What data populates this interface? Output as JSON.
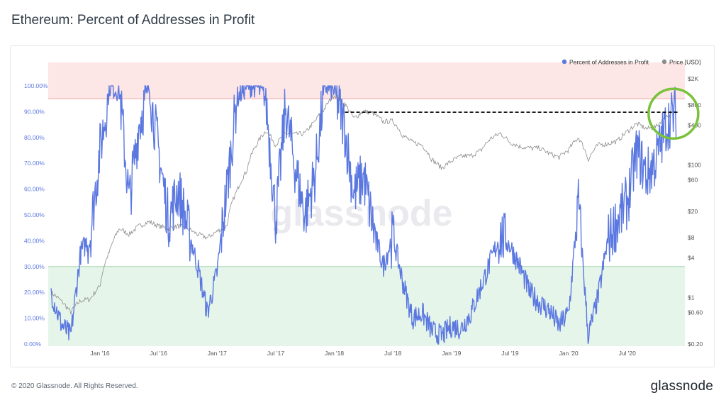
{
  "page": {
    "title": "Ethereum: Percent of Addresses in Profit",
    "footer": "© 2020 Glassnode. All Rights Reserved.",
    "logo": "glassnode",
    "watermark": "glassnode"
  },
  "colors": {
    "series_primary": "#5b78e0",
    "series_price": "#8c8c8c",
    "zone_high": "#fde6e6",
    "zone_high_line": "#f2a6a0",
    "zone_low": "#e6f5ea",
    "zone_low_line": "#a6d6ae",
    "annotation_circle": "#79c23a",
    "annotation_line": "#000000"
  },
  "chart_data": {
    "type": "line",
    "title": "Ethereum: Percent of Addresses in Profit",
    "legend": {
      "placement": "top-right",
      "items": [
        {
          "name": "Percent of Addresses in Profit",
          "color": "#5b78e0"
        },
        {
          "name": "Price [USD]",
          "color": "#8c8c8c"
        }
      ]
    },
    "x_axis": {
      "ticks": [
        "Jan '16",
        "Jul '16",
        "Jan '17",
        "Jul '17",
        "Jan '18",
        "Jul '18",
        "Jan '19",
        "Jul '19",
        "Jan '20",
        "Jul '20"
      ],
      "range": [
        "2015-08",
        "2020-12"
      ]
    },
    "y_left": {
      "ticks": [
        "0.00%",
        "10.00%",
        "20.00%",
        "30.00%",
        "40.00%",
        "50.00%",
        "60.00%",
        "70.00%",
        "80.00%",
        "90.00%",
        "100.00%"
      ],
      "range": [
        0,
        100
      ]
    },
    "y_right": {
      "scale": "log",
      "ticks": [
        "$0.20",
        "$0.60",
        "$1",
        "$4",
        "$8",
        "$20",
        "$60",
        "$100",
        "$400",
        "$800",
        "$2K"
      ],
      "tick_values": [
        0.2,
        0.6,
        1,
        4,
        8,
        20,
        60,
        100,
        400,
        800,
        2000
      ]
    },
    "zones": [
      {
        "name": "high",
        "from": 95,
        "to": 110
      },
      {
        "name": "low",
        "from": 0,
        "to": 30
      }
    ],
    "series": [
      {
        "name": "Percent of Addresses in Profit",
        "axis": "left",
        "points": [
          [
            "2015-08",
            20
          ],
          [
            "2015-09",
            8
          ],
          [
            "2015-10",
            3
          ],
          [
            "2015-11",
            35
          ],
          [
            "2015-12",
            42
          ],
          [
            "2016-01",
            75
          ],
          [
            "2016-02",
            100
          ],
          [
            "2016-03",
            98
          ],
          [
            "2016-04",
            55
          ],
          [
            "2016-05",
            85
          ],
          [
            "2016-06",
            100
          ],
          [
            "2016-07",
            75
          ],
          [
            "2016-08",
            48
          ],
          [
            "2016-09",
            60
          ],
          [
            "2016-10",
            45
          ],
          [
            "2016-11",
            30
          ],
          [
            "2016-12",
            12
          ],
          [
            "2017-01",
            28
          ],
          [
            "2017-02",
            60
          ],
          [
            "2017-03",
            95
          ],
          [
            "2017-04",
            100
          ],
          [
            "2017-05",
            100
          ],
          [
            "2017-06",
            95
          ],
          [
            "2017-07",
            48
          ],
          [
            "2017-08",
            92
          ],
          [
            "2017-09",
            68
          ],
          [
            "2017-10",
            50
          ],
          [
            "2017-11",
            65
          ],
          [
            "2017-12",
            100
          ],
          [
            "2018-01",
            98
          ],
          [
            "2018-02",
            85
          ],
          [
            "2018-03",
            58
          ],
          [
            "2018-04",
            65
          ],
          [
            "2018-05",
            45
          ],
          [
            "2018-06",
            30
          ],
          [
            "2018-07",
            42
          ],
          [
            "2018-08",
            24
          ],
          [
            "2018-09",
            10
          ],
          [
            "2018-10",
            12
          ],
          [
            "2018-11",
            5
          ],
          [
            "2018-12",
            3
          ],
          [
            "2019-01",
            7
          ],
          [
            "2019-02",
            6
          ],
          [
            "2019-03",
            12
          ],
          [
            "2019-04",
            22
          ],
          [
            "2019-05",
            32
          ],
          [
            "2019-06",
            42
          ],
          [
            "2019-07",
            38
          ],
          [
            "2019-08",
            30
          ],
          [
            "2019-09",
            20
          ],
          [
            "2019-10",
            16
          ],
          [
            "2019-11",
            13
          ],
          [
            "2019-12",
            7
          ],
          [
            "2020-01",
            12
          ],
          [
            "2020-02",
            55
          ],
          [
            "2020-03",
            3
          ],
          [
            "2020-04",
            18
          ],
          [
            "2020-05",
            40
          ],
          [
            "2020-06",
            48
          ],
          [
            "2020-07",
            55
          ],
          [
            "2020-08",
            75
          ],
          [
            "2020-09",
            65
          ],
          [
            "2020-10",
            72
          ],
          [
            "2020-11",
            85
          ],
          [
            "2020-12",
            90
          ]
        ]
      },
      {
        "name": "Price [USD]",
        "axis": "right",
        "points": [
          [
            "2015-08",
            1.2
          ],
          [
            "2015-09",
            0.9
          ],
          [
            "2015-10",
            0.6
          ],
          [
            "2015-11",
            0.9
          ],
          [
            "2015-12",
            0.95
          ],
          [
            "2016-01",
            1.5
          ],
          [
            "2016-02",
            5
          ],
          [
            "2016-03",
            11
          ],
          [
            "2016-04",
            9
          ],
          [
            "2016-05",
            12
          ],
          [
            "2016-06",
            14
          ],
          [
            "2016-07",
            12
          ],
          [
            "2016-08",
            11
          ],
          [
            "2016-09",
            12
          ],
          [
            "2016-10",
            11
          ],
          [
            "2016-11",
            9
          ],
          [
            "2016-12",
            8
          ],
          [
            "2017-01",
            10
          ],
          [
            "2017-02",
            12
          ],
          [
            "2017-03",
            40
          ],
          [
            "2017-04",
            80
          ],
          [
            "2017-05",
            200
          ],
          [
            "2017-06",
            330
          ],
          [
            "2017-07",
            200
          ],
          [
            "2017-08",
            300
          ],
          [
            "2017-09",
            290
          ],
          [
            "2017-10",
            300
          ],
          [
            "2017-11",
            450
          ],
          [
            "2017-12",
            700
          ],
          [
            "2018-01",
            1150
          ],
          [
            "2018-02",
            850
          ],
          [
            "2018-03",
            500
          ],
          [
            "2018-04",
            650
          ],
          [
            "2018-05",
            600
          ],
          [
            "2018-06",
            450
          ],
          [
            "2018-07",
            460
          ],
          [
            "2018-08",
            280
          ],
          [
            "2018-09",
            220
          ],
          [
            "2018-10",
            200
          ],
          [
            "2018-11",
            120
          ],
          [
            "2018-12",
            90
          ],
          [
            "2019-01",
            115
          ],
          [
            "2019-02",
            135
          ],
          [
            "2019-03",
            138
          ],
          [
            "2019-04",
            165
          ],
          [
            "2019-05",
            250
          ],
          [
            "2019-06",
            300
          ],
          [
            "2019-07",
            220
          ],
          [
            "2019-08",
            190
          ],
          [
            "2019-09",
            180
          ],
          [
            "2019-10",
            180
          ],
          [
            "2019-11",
            150
          ],
          [
            "2019-12",
            130
          ],
          [
            "2020-01",
            170
          ],
          [
            "2020-02",
            260
          ],
          [
            "2020-03",
            120
          ],
          [
            "2020-04",
            200
          ],
          [
            "2020-05",
            210
          ],
          [
            "2020-06",
            230
          ],
          [
            "2020-07",
            320
          ],
          [
            "2020-08",
            420
          ],
          [
            "2020-09",
            350
          ],
          [
            "2020-10",
            380
          ],
          [
            "2020-11",
            550
          ],
          [
            "2020-12",
            620
          ]
        ]
      }
    ],
    "annotations": {
      "dashed_line_price": 800,
      "circle": "around latest data (Nov–Dec 2020)"
    }
  }
}
